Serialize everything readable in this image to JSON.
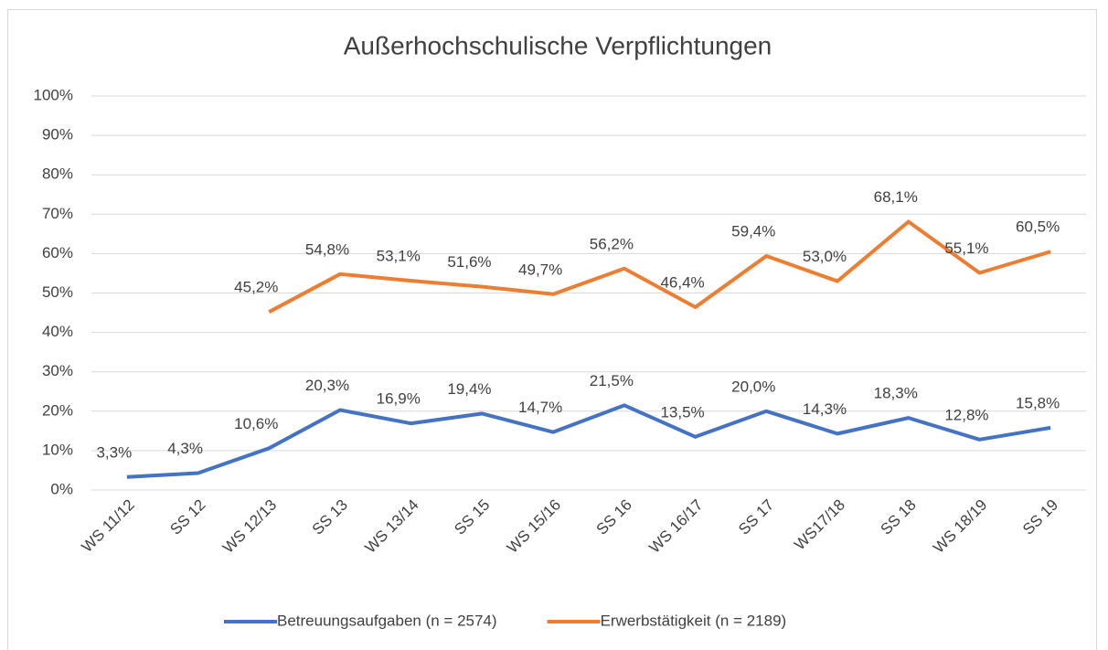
{
  "chart_data": {
    "type": "line",
    "title": "Außerhochschulische Verpflichtungen",
    "categories": [
      "WS 11/12",
      "SS 12",
      "WS 12/13",
      "SS 13",
      "WS 13/14",
      "SS 15",
      "WS 15/16",
      "SS 16",
      "WS 16/17",
      "SS 17",
      "WS17/18",
      "SS 18",
      "WS 18/19",
      "SS 19"
    ],
    "series": [
      {
        "name": "Betreuungsaufgaben (n = 2574)",
        "color": "#4472c4",
        "values": [
          3.3,
          4.3,
          10.6,
          20.3,
          16.9,
          19.4,
          14.7,
          21.5,
          13.5,
          20.0,
          14.3,
          18.3,
          12.8,
          15.8
        ],
        "value_labels": [
          "3,3%",
          "4,3%",
          "10,6%",
          "20,3%",
          "16,9%",
          "19,4%",
          "14,7%",
          "21,5%",
          "13,5%",
          "20,0%",
          "14,3%",
          "18,3%",
          "12,8%",
          "15,8%"
        ]
      },
      {
        "name": "Erwerbstätigkeit (n = 2189)",
        "color": "#ed7d31",
        "values": [
          null,
          null,
          45.2,
          54.8,
          53.1,
          51.6,
          49.7,
          56.2,
          46.4,
          59.4,
          53.0,
          68.1,
          55.1,
          60.5
        ],
        "value_labels": [
          null,
          null,
          "45,2%",
          "54,8%",
          "53,1%",
          "51,6%",
          "49,7%",
          "56,2%",
          "46,4%",
          "59,4%",
          "53,0%",
          "68,1%",
          "55,1%",
          "60,5%"
        ]
      }
    ],
    "ylim": [
      0,
      100
    ],
    "yticks": [
      {
        "value": 0,
        "label": "0%"
      },
      {
        "value": 10,
        "label": "10%"
      },
      {
        "value": 20,
        "label": "20%"
      },
      {
        "value": 30,
        "label": "30%"
      },
      {
        "value": 40,
        "label": "40%"
      },
      {
        "value": 50,
        "label": "50%"
      },
      {
        "value": 60,
        "label": "60%"
      },
      {
        "value": 70,
        "label": "70%"
      },
      {
        "value": 80,
        "label": "80%"
      },
      {
        "value": 90,
        "label": "90%"
      },
      {
        "value": 100,
        "label": "100%"
      }
    ],
    "grid": true,
    "legend": "bottom"
  }
}
